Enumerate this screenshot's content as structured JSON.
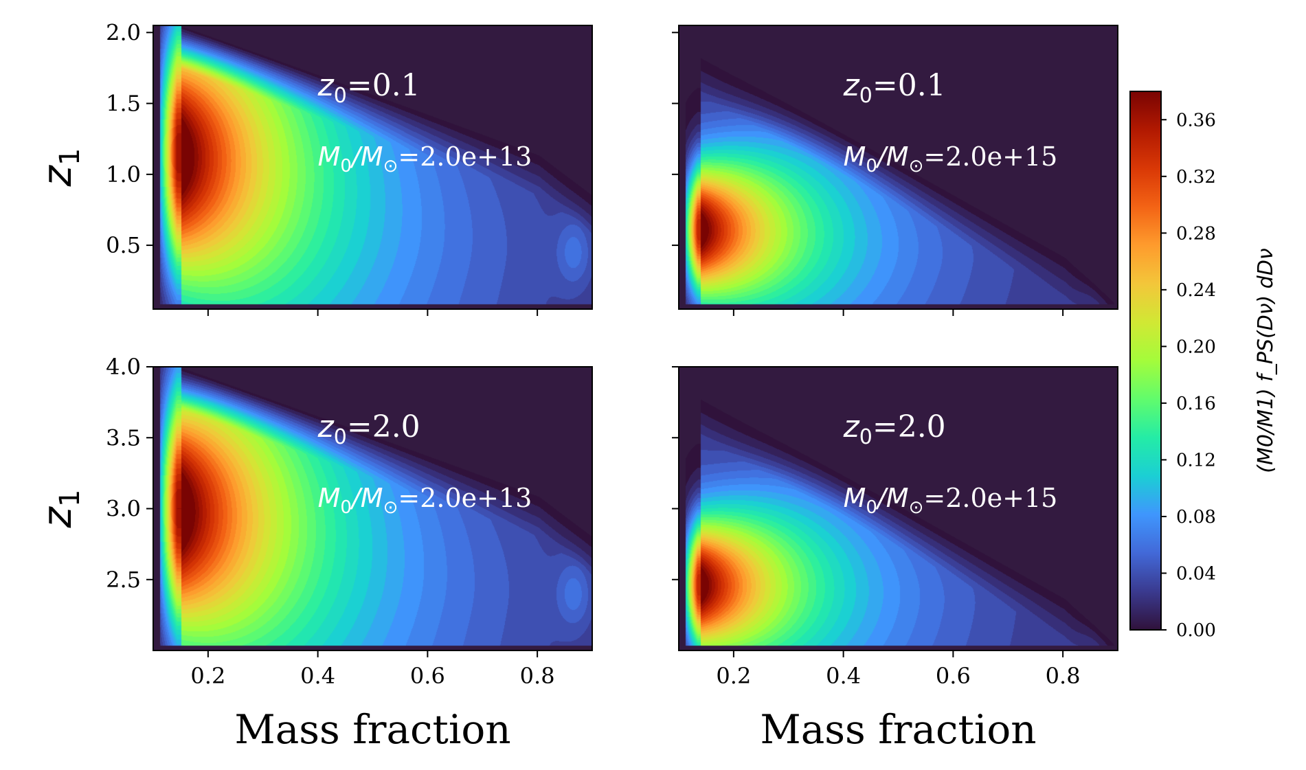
{
  "colors": {
    "background": "#331a40",
    "frame": "#000000",
    "annotation_text": "#ffffff",
    "colormap": [
      "#30123b",
      "#3a3a8f",
      "#4269d8",
      "#3f96fd",
      "#1bcfd4",
      "#24eca6",
      "#61fc6c",
      "#a4fc3b",
      "#d1e834",
      "#f3c63a",
      "#fe9b2d",
      "#f36315",
      "#d93806",
      "#b11901",
      "#7a0403"
    ]
  },
  "chart_data": {
    "type": "heatmap",
    "subtype": "filled-contour",
    "layout": "2x2 panel grid with shared x axis per column and shared y axis per row",
    "shared": {
      "xlabel": "Mass fraction",
      "xlim": [
        0.1,
        0.9
      ],
      "xticks": [
        "0.2",
        "0.4",
        "0.6",
        "0.8"
      ],
      "xtick_values": [
        0.2,
        0.4,
        0.6,
        0.8
      ]
    },
    "rows": [
      {
        "ylabel": "z1",
        "ylabel_main": "z",
        "ylabel_sub": "1",
        "ylim": [
          0.05,
          2.05
        ],
        "yticks": [
          "0.5",
          "1.0",
          "1.5",
          "2.0"
        ],
        "ytick_values": [
          0.5,
          1.0,
          1.5,
          2.0
        ]
      },
      {
        "ylabel": "z1",
        "ylabel_main": "z",
        "ylabel_sub": "1",
        "ylim": [
          2.0,
          4.0
        ],
        "yticks": [
          "2.5",
          "3.0",
          "3.5",
          "4.0"
        ],
        "ytick_values": [
          2.5,
          3.0,
          3.5,
          4.0
        ]
      }
    ],
    "panels": [
      {
        "row": 0,
        "col": 0,
        "z0_label": "=0.1",
        "mass_label": "=2.0e+13",
        "z0": 0.1,
        "M0_over_Msun": 20000000000000.0,
        "peak": {
          "mass_fraction": 0.15,
          "z1": 1.15,
          "value": 0.37
        }
      },
      {
        "row": 0,
        "col": 1,
        "z0_label": "=0.1",
        "mass_label": "=2.0e+15",
        "z0": 0.1,
        "M0_over_Msun": 2000000000000000.0,
        "peak": {
          "mass_fraction": 0.14,
          "z1": 0.62,
          "value": 0.35
        }
      },
      {
        "row": 1,
        "col": 0,
        "z0_label": "=2.0",
        "mass_label": "=2.0e+13",
        "z0": 2.0,
        "M0_over_Msun": 20000000000000.0,
        "peak": {
          "mass_fraction": 0.15,
          "z1": 3.05,
          "value": 0.37
        }
      },
      {
        "row": 1,
        "col": 1,
        "z0_label": "=2.0",
        "mass_label": "=2.0e+15",
        "z0": 2.0,
        "M0_over_Msun": 2000000000000000.0,
        "peak": {
          "mass_fraction": 0.14,
          "z1": 2.47,
          "value": 0.35
        }
      }
    ],
    "colorbar": {
      "range": [
        0.0,
        0.38
      ],
      "ticks": [
        "0.00",
        "0.04",
        "0.08",
        "0.12",
        "0.16",
        "0.20",
        "0.24",
        "0.28",
        "0.32",
        "0.36"
      ],
      "tick_values": [
        0.0,
        0.04,
        0.08,
        0.12,
        0.16,
        0.2,
        0.24,
        0.28,
        0.32,
        0.36
      ],
      "label": "(M0/M1) f_PS(Dν) dDν"
    }
  }
}
